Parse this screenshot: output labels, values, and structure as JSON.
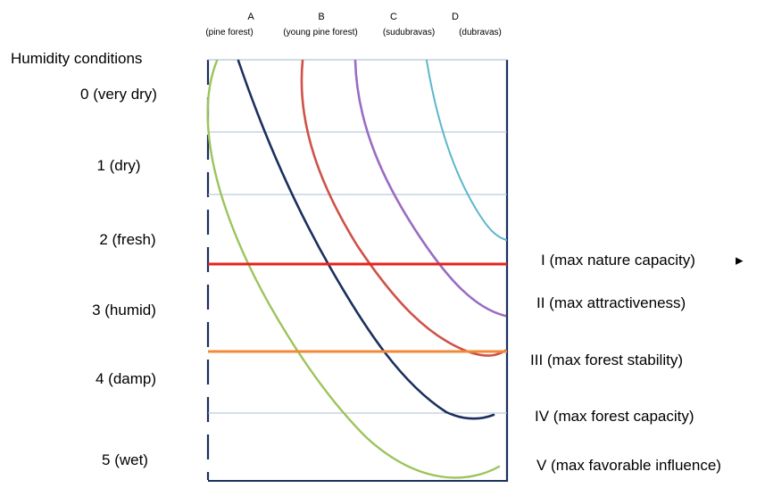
{
  "columns": [
    {
      "letter": "A",
      "label": "(pine forest)"
    },
    {
      "letter": "B",
      "label": "(young pine forest)"
    },
    {
      "letter": "C",
      "label": "(sudubravas)"
    },
    {
      "letter": "D",
      "label": "(dubravas)"
    }
  ],
  "y_axis_title": "Humidity conditions",
  "humidity_levels": [
    "0 (very dry)",
    "1 (dry)",
    "2 (fresh)",
    "3 (humid)",
    "4 (damp)",
    "5 (wet)"
  ],
  "levels": [
    {
      "label": "I (max nature capacity)",
      "color": "#e8211c"
    },
    {
      "label": "II (max attractiveness)",
      "color": "#9a6cc2"
    },
    {
      "label": "III (max forest stability)",
      "color": "#f08a3a"
    },
    {
      "label": "IV (max forest capacity)",
      "color": "#1b2f5e"
    },
    {
      "label": "V (max favorable influence)",
      "color": "#9cc45c"
    }
  ],
  "curve_colors": {
    "green": "#9cc45c",
    "navy": "#1b2f5e",
    "red": "#cf5148",
    "purple": "#9a6cc2",
    "teal": "#5bb7cb"
  },
  "trailing_mark": "▸"
}
